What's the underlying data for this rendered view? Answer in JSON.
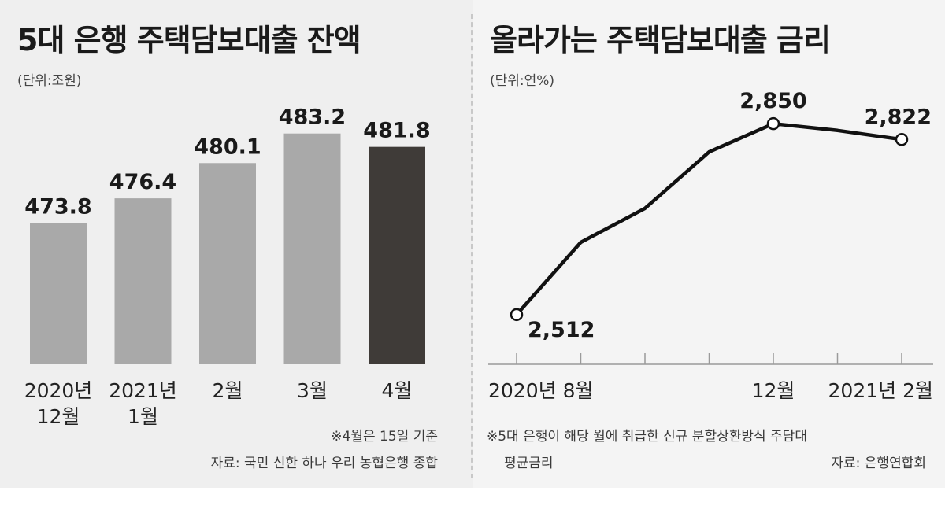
{
  "left": {
    "title": "5대 은행 주택담보대출 잔액",
    "unit": "(단위:조원)",
    "note": "※4월은 15일 기준",
    "source": "자료: 국민 신한 하나 우리 농협은행 종합"
  },
  "right": {
    "title": "올라가는 주택담보대출 금리",
    "unit": "(단위:연%)",
    "note_line1": "※5대 은행이 해당 월에 취급한 신규 분할상환방식 주담대",
    "note_line2": "평균금리",
    "source": "자료: 은행연합회"
  },
  "colors": {
    "bar": "#a9a9a9",
    "bar_highlight": "#3f3b38",
    "line": "#111111",
    "left_bg": "#efefef",
    "right_bg": "#f4f4f4"
  },
  "chart_data": [
    {
      "type": "bar",
      "title": "5대 은행 주택담보대출 잔액",
      "ylabel": "조원",
      "categories": [
        [
          "2020년",
          "12월"
        ],
        [
          "2021년",
          "1월"
        ],
        [
          "2월"
        ],
        [
          "3월"
        ],
        [
          "4월"
        ]
      ],
      "values": [
        473.8,
        476.4,
        480.1,
        483.2,
        481.8
      ],
      "value_labels": [
        "473.8",
        "476.4",
        "480.1",
        "483.2",
        "481.8"
      ],
      "highlight_index": 4,
      "ylim": [
        459,
        484
      ]
    },
    {
      "type": "line",
      "title": "올라가는 주택담보대출 금리",
      "ylabel": "연%",
      "x_ticks": 7,
      "x": [
        0,
        1,
        2,
        3,
        4,
        5,
        6
      ],
      "values": [
        2.512,
        2.64,
        2.7,
        2.8,
        2.85,
        2.838,
        2.822
      ],
      "labeled_points": [
        {
          "index": 0,
          "label": "2,512",
          "pos": "right-below"
        },
        {
          "index": 4,
          "label": "2,850",
          "pos": "above"
        },
        {
          "index": 6,
          "label": "2,822",
          "pos": "above"
        }
      ],
      "marker_indices": [
        0,
        4,
        6
      ],
      "x_labels": [
        {
          "index": 0,
          "label": "2020년 8월"
        },
        {
          "index": 4,
          "label": "12월"
        },
        {
          "index": 6,
          "label": "2021년 2월"
        }
      ],
      "ylim": [
        2.47,
        2.86
      ]
    }
  ]
}
